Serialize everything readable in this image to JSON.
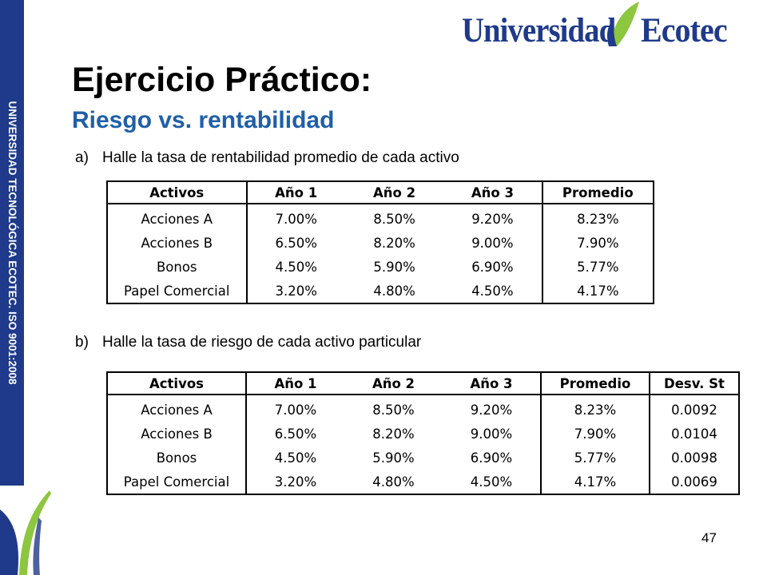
{
  "sidebar": {
    "text": "UNIVERSIDAD TECNOLÓGICA ECOTEC. ISO 9001:2008"
  },
  "colors": {
    "brand_blue": "#1f3a8a",
    "subtitle_blue": "#1f5fa8",
    "leaf_green": "#8dc63f"
  },
  "logo": {
    "left_word": "Universidad",
    "right_word": "Ecotec"
  },
  "slide": {
    "title": "Ejercicio Práctico:",
    "subtitle": "Riesgo vs. rentabilidad",
    "page_number": "47"
  },
  "question_a": {
    "marker": "a)",
    "text": "Halle la tasa de rentabilidad promedio de cada activo"
  },
  "question_b": {
    "marker": "b)",
    "text": "Halle la tasa de riesgo de cada activo particular"
  },
  "table_a": {
    "headers": [
      "Activos",
      "Año 1",
      "Año 2",
      "Año 3",
      "Promedio"
    ],
    "rows": [
      [
        "Acciones A",
        "7.00%",
        "8.50%",
        "9.20%",
        "8.23%"
      ],
      [
        "Acciones B",
        "6.50%",
        "8.20%",
        "9.00%",
        "7.90%"
      ],
      [
        "Bonos",
        "4.50%",
        "5.90%",
        "6.90%",
        "5.77%"
      ],
      [
        "Papel Comercial",
        "3.20%",
        "4.80%",
        "4.50%",
        "4.17%"
      ]
    ]
  },
  "table_b": {
    "headers": [
      "Activos",
      "Año 1",
      "Año 2",
      "Año 3",
      "Promedio",
      "Desv. St"
    ],
    "rows": [
      [
        "Acciones A",
        "7.00%",
        "8.50%",
        "9.20%",
        "8.23%",
        "0.0092"
      ],
      [
        "Acciones B",
        "6.50%",
        "8.20%",
        "9.00%",
        "7.90%",
        "0.0104"
      ],
      [
        "Bonos",
        "4.50%",
        "5.90%",
        "6.90%",
        "5.77%",
        "0.0098"
      ],
      [
        "Papel Comercial",
        "3.20%",
        "4.80%",
        "4.50%",
        "4.17%",
        "0.0069"
      ]
    ]
  }
}
